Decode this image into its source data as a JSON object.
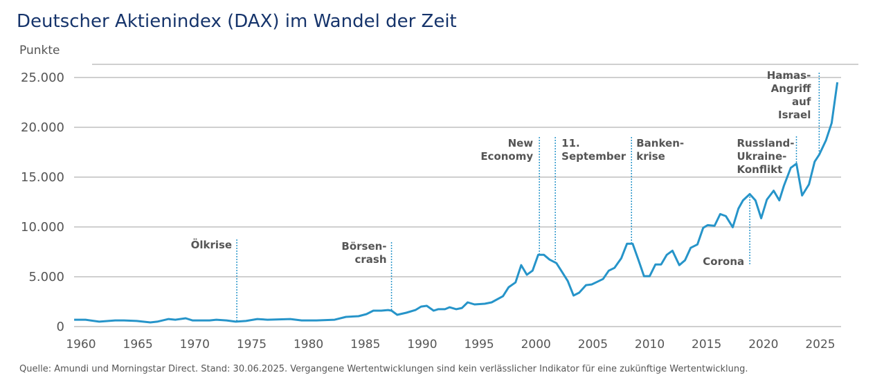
{
  "chart_data": {
    "type": "line",
    "title": "Deutscher Aktienindex (DAX) im Wandel der Zeit",
    "ylabel": "Punkte",
    "xlabel": "",
    "xlim": [
      1959.4,
      2026.6
    ],
    "ylim": [
      0,
      25000
    ],
    "grid": true,
    "line_color": "#2694c9",
    "x_ticks": [
      1960,
      1965,
      1970,
      1975,
      1980,
      1985,
      1990,
      1995,
      2000,
      2005,
      2010,
      2015,
      2020,
      2025
    ],
    "x_tick_labels": [
      "1960",
      "1965",
      "1970",
      "1975",
      "1980",
      "1985",
      "1990",
      "1995",
      "2000",
      "2005",
      "2010",
      "2015",
      "2020",
      "2025"
    ],
    "y_ticks": [
      0,
      5000,
      10000,
      15000,
      20000,
      25000
    ],
    "y_tick_labels": [
      "0",
      "5.000",
      "10.000",
      "15.000",
      "20.000",
      "25.000"
    ],
    "series": [
      {
        "x": [
          1959.4,
          1960.4,
          1961.6,
          1963.0,
          1963.8,
          1964.9,
          1966.1,
          1966.7,
          1967.7,
          1968.3,
          1969.2,
          1969.8,
          1970.3,
          1971.3,
          1971.9,
          1972.8,
          1973.6,
          1974.5,
          1975.5,
          1976.4,
          1978.4,
          1979.4,
          1980.7,
          1982.3,
          1983.3,
          1984.4,
          1985.1,
          1985.7,
          1986.4,
          1987.0,
          1987.3,
          1987.8,
          1988.6,
          1989.4,
          1989.9,
          1990.4,
          1991.0,
          1991.4,
          1992.0,
          1992.4,
          1993.0,
          1993.5,
          1994.0,
          1994.6,
          1995.5,
          1996.1,
          1997.1,
          1997.6,
          1998.2,
          1998.7,
          1999.2,
          1999.7,
          2000.2,
          2000.7,
          2001.2,
          2001.8,
          2002.3,
          2002.8,
          2003.3,
          2003.8,
          2004.4,
          2004.9,
          2005.4,
          2005.9,
          2006.4,
          2006.9,
          2007.5,
          2008.0,
          2008.5,
          2009.0,
          2009.5,
          2010.0,
          2010.5,
          2011.0,
          2011.5,
          2012.0,
          2012.6,
          2013.1,
          2013.6,
          2014.2,
          2014.7,
          2015.1,
          2015.7,
          2016.2,
          2016.7,
          2017.3,
          2017.8,
          2018.2,
          2018.8,
          2019.3,
          2019.8,
          2020.3,
          2020.9,
          2021.4,
          2021.8,
          2022.4,
          2022.9,
          2023.4,
          2024.0,
          2024.5,
          2024.9,
          2025.5,
          2026.0,
          2026.5
        ],
        "y": [
          690,
          690,
          490,
          620,
          620,
          560,
          420,
          490,
          760,
          690,
          830,
          620,
          620,
          620,
          690,
          620,
          490,
          560,
          760,
          690,
          760,
          620,
          620,
          690,
          970,
          1040,
          1250,
          1600,
          1600,
          1660,
          1600,
          1180,
          1390,
          1660,
          2010,
          2080,
          1600,
          1740,
          1740,
          1940,
          1740,
          1870,
          2430,
          2220,
          2290,
          2430,
          3050,
          3950,
          4430,
          6170,
          5200,
          5610,
          7200,
          7200,
          6720,
          6370,
          5470,
          4570,
          3120,
          3400,
          4160,
          4230,
          4500,
          4780,
          5610,
          5890,
          6860,
          8310,
          8310,
          6720,
          5060,
          5060,
          6230,
          6230,
          7200,
          7620,
          6170,
          6650,
          7900,
          8240,
          9910,
          10180,
          10110,
          11290,
          11080,
          9970,
          11840,
          12670,
          13300,
          12670,
          10870,
          12740,
          13640,
          12670,
          14130,
          15930,
          16350,
          13160,
          14270,
          16550,
          17250,
          18700,
          20430,
          24520
        ]
      }
    ],
    "annotations": [
      {
        "x": 1973.7,
        "lines": [
          "Ölkrise"
        ]
      },
      {
        "x": 1987.3,
        "lines": [
          "Börsen-",
          "crash"
        ]
      },
      {
        "x": 2000.3,
        "lines": [
          "New",
          "Economy"
        ]
      },
      {
        "x": 2001.7,
        "lines": [
          "11.",
          "September"
        ]
      },
      {
        "x": 2008.4,
        "lines": [
          "Banken-",
          "krise"
        ]
      },
      {
        "x": 2018.8,
        "lines": [
          "Corona"
        ]
      },
      {
        "x": 2022.9,
        "lines": [
          "Russland-",
          "Ukraine-",
          "Konflikt"
        ]
      },
      {
        "x": 2024.9,
        "lines": [
          "Hamas-",
          "Angriff",
          "auf",
          "Israel"
        ]
      }
    ],
    "source": "Quelle: Amundi und Morningstar Direct. Stand: 30.06.2025. Vergangene Wertentwicklungen sind kein verlässlicher Indikator für eine zukünftige Wertentwicklung."
  }
}
